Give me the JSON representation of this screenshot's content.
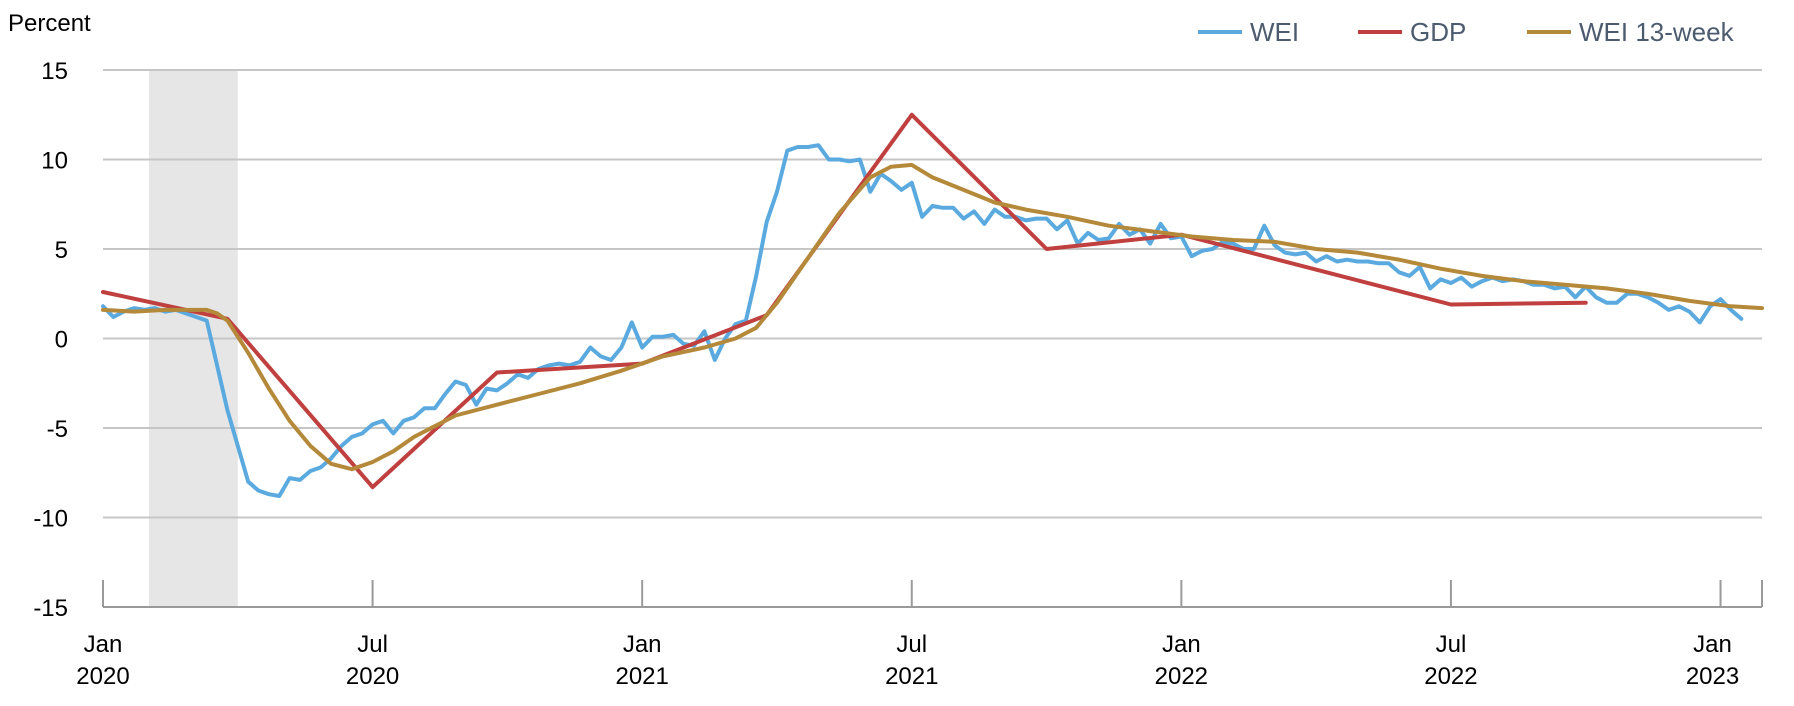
{
  "chart_data": {
    "type": "line",
    "ylabel": "Percent",
    "ylim": [
      -15,
      15
    ],
    "xlim": [
      "2020-01-04",
      "2023-01-28"
    ],
    "grid": "horizontal",
    "legend_position": "top-right",
    "yticks": [
      {
        "value": 15,
        "label": "15"
      },
      {
        "value": 10,
        "label": "10"
      },
      {
        "value": 5,
        "label": "5"
      },
      {
        "value": 0,
        "label": "0"
      },
      {
        "value": -5,
        "label": "-5"
      },
      {
        "value": -10,
        "label": "-10"
      },
      {
        "value": -15,
        "label": "-15"
      }
    ],
    "xticks": [
      {
        "date": "2020-01-04",
        "month": "Jan",
        "year": "2020"
      },
      {
        "date": "2020-07-04",
        "month": "Jul",
        "year": "2020"
      },
      {
        "date": "2021-01-02",
        "month": "Jan",
        "year": "2021"
      },
      {
        "date": "2021-07-03",
        "month": "Jul",
        "year": "2021"
      },
      {
        "date": "2022-01-01",
        "month": "Jan",
        "year": "2022"
      },
      {
        "date": "2022-07-02",
        "month": "Jul",
        "year": "2022"
      },
      {
        "date": "2022-12-31",
        "month": "Jan",
        "year": "2023"
      }
    ],
    "shaded_regions": [
      {
        "start": "2020-02-04",
        "end": "2020-04-04",
        "color": "#e6e6e6"
      }
    ],
    "series": [
      {
        "name": "WEI",
        "color": "#5aaae0",
        "points": [
          [
            "2020-01-04",
            1.8
          ],
          [
            "2020-01-11",
            1.2
          ],
          [
            "2020-01-18",
            1.5
          ],
          [
            "2020-01-25",
            1.7
          ],
          [
            "2020-02-01",
            1.6
          ],
          [
            "2020-02-08",
            1.7
          ],
          [
            "2020-02-15",
            1.5
          ],
          [
            "2020-02-22",
            1.6
          ],
          [
            "2020-02-29",
            1.4
          ],
          [
            "2020-03-07",
            1.2
          ],
          [
            "2020-03-14",
            1.0
          ],
          [
            "2020-03-21",
            -1.5
          ],
          [
            "2020-03-28",
            -4.0
          ],
          [
            "2020-04-04",
            -6.0
          ],
          [
            "2020-04-11",
            -8.0
          ],
          [
            "2020-04-18",
            -8.5
          ],
          [
            "2020-04-25",
            -8.7
          ],
          [
            "2020-05-02",
            -8.8
          ],
          [
            "2020-05-09",
            -7.8
          ],
          [
            "2020-05-16",
            -7.9
          ],
          [
            "2020-05-23",
            -7.4
          ],
          [
            "2020-05-30",
            -7.2
          ],
          [
            "2020-06-06",
            -6.7
          ],
          [
            "2020-06-13",
            -6.0
          ],
          [
            "2020-06-20",
            -5.5
          ],
          [
            "2020-06-27",
            -5.3
          ],
          [
            "2020-07-04",
            -4.8
          ],
          [
            "2020-07-11",
            -4.6
          ],
          [
            "2020-07-18",
            -5.3
          ],
          [
            "2020-07-25",
            -4.6
          ],
          [
            "2020-08-01",
            -4.4
          ],
          [
            "2020-08-08",
            -3.9
          ],
          [
            "2020-08-15",
            -3.9
          ],
          [
            "2020-08-22",
            -3.1
          ],
          [
            "2020-08-29",
            -2.4
          ],
          [
            "2020-09-05",
            -2.6
          ],
          [
            "2020-09-12",
            -3.7
          ],
          [
            "2020-09-19",
            -2.8
          ],
          [
            "2020-09-26",
            -2.9
          ],
          [
            "2020-10-03",
            -2.5
          ],
          [
            "2020-10-10",
            -2.0
          ],
          [
            "2020-10-17",
            -2.2
          ],
          [
            "2020-10-24",
            -1.7
          ],
          [
            "2020-10-31",
            -1.5
          ],
          [
            "2020-11-07",
            -1.4
          ],
          [
            "2020-11-14",
            -1.5
          ],
          [
            "2020-11-21",
            -1.3
          ],
          [
            "2020-11-28",
            -0.5
          ],
          [
            "2020-12-05",
            -1.0
          ],
          [
            "2020-12-12",
            -1.2
          ],
          [
            "2020-12-19",
            -0.5
          ],
          [
            "2020-12-26",
            0.9
          ],
          [
            "2021-01-02",
            -0.5
          ],
          [
            "2021-01-09",
            0.1
          ],
          [
            "2021-01-16",
            0.1
          ],
          [
            "2021-01-23",
            0.2
          ],
          [
            "2021-01-30",
            -0.3
          ],
          [
            "2021-02-06",
            -0.4
          ],
          [
            "2021-02-13",
            0.4
          ],
          [
            "2021-02-20",
            -1.2
          ],
          [
            "2021-02-27",
            0.0
          ],
          [
            "2021-03-06",
            0.8
          ],
          [
            "2021-03-13",
            1.0
          ],
          [
            "2021-03-20",
            3.5
          ],
          [
            "2021-03-27",
            6.5
          ],
          [
            "2021-04-03",
            8.2
          ],
          [
            "2021-04-10",
            10.5
          ],
          [
            "2021-04-17",
            10.7
          ],
          [
            "2021-04-24",
            10.7
          ],
          [
            "2021-05-01",
            10.8
          ],
          [
            "2021-05-08",
            10.0
          ],
          [
            "2021-05-15",
            10.0
          ],
          [
            "2021-05-22",
            9.9
          ],
          [
            "2021-05-29",
            10.0
          ],
          [
            "2021-06-05",
            8.2
          ],
          [
            "2021-06-12",
            9.2
          ],
          [
            "2021-06-19",
            8.8
          ],
          [
            "2021-06-26",
            8.3
          ],
          [
            "2021-07-03",
            8.7
          ],
          [
            "2021-07-10",
            6.8
          ],
          [
            "2021-07-17",
            7.4
          ],
          [
            "2021-07-24",
            7.3
          ],
          [
            "2021-07-31",
            7.3
          ],
          [
            "2021-08-07",
            6.7
          ],
          [
            "2021-08-14",
            7.1
          ],
          [
            "2021-08-21",
            6.4
          ],
          [
            "2021-08-28",
            7.2
          ],
          [
            "2021-09-04",
            6.8
          ],
          [
            "2021-09-11",
            6.8
          ],
          [
            "2021-09-18",
            6.6
          ],
          [
            "2021-09-25",
            6.7
          ],
          [
            "2021-10-02",
            6.7
          ],
          [
            "2021-10-09",
            6.1
          ],
          [
            "2021-10-16",
            6.6
          ],
          [
            "2021-10-23",
            5.3
          ],
          [
            "2021-10-30",
            5.9
          ],
          [
            "2021-11-06",
            5.5
          ],
          [
            "2021-11-13",
            5.6
          ],
          [
            "2021-11-20",
            6.4
          ],
          [
            "2021-11-27",
            5.8
          ],
          [
            "2021-12-04",
            6.1
          ],
          [
            "2021-12-11",
            5.3
          ],
          [
            "2021-12-18",
            6.4
          ],
          [
            "2021-12-25",
            5.6
          ],
          [
            "2022-01-01",
            5.7
          ],
          [
            "2022-01-08",
            4.6
          ],
          [
            "2022-01-15",
            4.9
          ],
          [
            "2022-01-22",
            5.0
          ],
          [
            "2022-01-29",
            5.4
          ],
          [
            "2022-02-05",
            5.3
          ],
          [
            "2022-02-12",
            5.0
          ],
          [
            "2022-02-19",
            5.0
          ],
          [
            "2022-02-26",
            6.3
          ],
          [
            "2022-03-05",
            5.2
          ],
          [
            "2022-03-12",
            4.8
          ],
          [
            "2022-03-19",
            4.7
          ],
          [
            "2022-03-26",
            4.8
          ],
          [
            "2022-04-02",
            4.3
          ],
          [
            "2022-04-09",
            4.6
          ],
          [
            "2022-04-16",
            4.3
          ],
          [
            "2022-04-23",
            4.4
          ],
          [
            "2022-04-30",
            4.3
          ],
          [
            "2022-05-07",
            4.3
          ],
          [
            "2022-05-14",
            4.2
          ],
          [
            "2022-05-21",
            4.2
          ],
          [
            "2022-05-28",
            3.7
          ],
          [
            "2022-06-04",
            3.5
          ],
          [
            "2022-06-11",
            4.0
          ],
          [
            "2022-06-18",
            2.8
          ],
          [
            "2022-06-25",
            3.3
          ],
          [
            "2022-07-02",
            3.1
          ],
          [
            "2022-07-09",
            3.4
          ],
          [
            "2022-07-16",
            2.9
          ],
          [
            "2022-07-23",
            3.2
          ],
          [
            "2022-07-30",
            3.4
          ],
          [
            "2022-08-06",
            3.2
          ],
          [
            "2022-08-13",
            3.3
          ],
          [
            "2022-08-20",
            3.2
          ],
          [
            "2022-08-27",
            3.0
          ],
          [
            "2022-09-03",
            3.0
          ],
          [
            "2022-09-10",
            2.8
          ],
          [
            "2022-09-17",
            2.9
          ],
          [
            "2022-09-24",
            2.3
          ],
          [
            "2022-10-01",
            2.9
          ],
          [
            "2022-10-08",
            2.3
          ],
          [
            "2022-10-15",
            2.0
          ],
          [
            "2022-10-22",
            2.0
          ],
          [
            "2022-10-29",
            2.5
          ],
          [
            "2022-11-05",
            2.5
          ],
          [
            "2022-11-12",
            2.3
          ],
          [
            "2022-11-19",
            2.0
          ],
          [
            "2022-11-26",
            1.6
          ],
          [
            "2022-12-03",
            1.8
          ],
          [
            "2022-12-10",
            1.5
          ],
          [
            "2022-12-17",
            0.9
          ],
          [
            "2022-12-24",
            1.8
          ],
          [
            "2022-12-31",
            2.2
          ],
          [
            "2023-01-07",
            1.6
          ],
          [
            "2023-01-14",
            1.1
          ]
        ]
      },
      {
        "name": "GDP",
        "color": "#c0403f",
        "points": [
          [
            "2020-01-04",
            2.6
          ],
          [
            "2020-03-28",
            1.1
          ],
          [
            "2020-07-04",
            -8.3
          ],
          [
            "2020-09-26",
            -1.9
          ],
          [
            "2021-01-02",
            -1.4
          ],
          [
            "2021-03-27",
            1.3
          ],
          [
            "2021-07-03",
            12.5
          ],
          [
            "2021-10-02",
            5.0
          ],
          [
            "2022-01-01",
            5.8
          ],
          [
            "2022-07-02",
            1.9
          ],
          [
            "2022-10-01",
            2.0
          ]
        ]
      },
      {
        "name": "WEI 13-week",
        "color": "#b5893a",
        "points": [
          [
            "2020-01-04",
            1.6
          ],
          [
            "2020-01-25",
            1.5
          ],
          [
            "2020-02-15",
            1.6
          ],
          [
            "2020-03-07",
            1.6
          ],
          [
            "2020-03-14",
            1.6
          ],
          [
            "2020-03-21",
            1.4
          ],
          [
            "2020-03-28",
            1.0
          ],
          [
            "2020-04-11",
            -0.8
          ],
          [
            "2020-04-25",
            -2.8
          ],
          [
            "2020-05-09",
            -4.6
          ],
          [
            "2020-05-23",
            -6.0
          ],
          [
            "2020-06-06",
            -7.0
          ],
          [
            "2020-06-20",
            -7.3
          ],
          [
            "2020-07-04",
            -6.9
          ],
          [
            "2020-07-18",
            -6.3
          ],
          [
            "2020-08-01",
            -5.5
          ],
          [
            "2020-08-15",
            -4.9
          ],
          [
            "2020-08-29",
            -4.3
          ],
          [
            "2020-09-26",
            -3.7
          ],
          [
            "2020-10-24",
            -3.1
          ],
          [
            "2020-11-21",
            -2.5
          ],
          [
            "2020-12-19",
            -1.8
          ],
          [
            "2021-01-16",
            -1.0
          ],
          [
            "2021-02-13",
            -0.5
          ],
          [
            "2021-03-06",
            0.0
          ],
          [
            "2021-03-20",
            0.6
          ],
          [
            "2021-04-03",
            2.0
          ],
          [
            "2021-04-24",
            4.5
          ],
          [
            "2021-05-15",
            7.0
          ],
          [
            "2021-06-05",
            9.0
          ],
          [
            "2021-06-19",
            9.6
          ],
          [
            "2021-07-03",
            9.7
          ],
          [
            "2021-07-17",
            9.0
          ],
          [
            "2021-08-07",
            8.3
          ],
          [
            "2021-08-28",
            7.6
          ],
          [
            "2021-09-18",
            7.2
          ],
          [
            "2021-10-16",
            6.8
          ],
          [
            "2021-11-13",
            6.3
          ],
          [
            "2021-12-11",
            6.0
          ],
          [
            "2022-01-08",
            5.7
          ],
          [
            "2022-02-05",
            5.5
          ],
          [
            "2022-03-05",
            5.4
          ],
          [
            "2022-04-02",
            5.0
          ],
          [
            "2022-04-30",
            4.8
          ],
          [
            "2022-05-28",
            4.4
          ],
          [
            "2022-06-25",
            3.9
          ],
          [
            "2022-07-23",
            3.5
          ],
          [
            "2022-08-20",
            3.2
          ],
          [
            "2022-09-17",
            3.0
          ],
          [
            "2022-10-15",
            2.8
          ],
          [
            "2022-11-12",
            2.5
          ],
          [
            "2022-12-10",
            2.1
          ],
          [
            "2023-01-07",
            1.8
          ],
          [
            "2023-01-28",
            1.7
          ]
        ]
      }
    ]
  }
}
